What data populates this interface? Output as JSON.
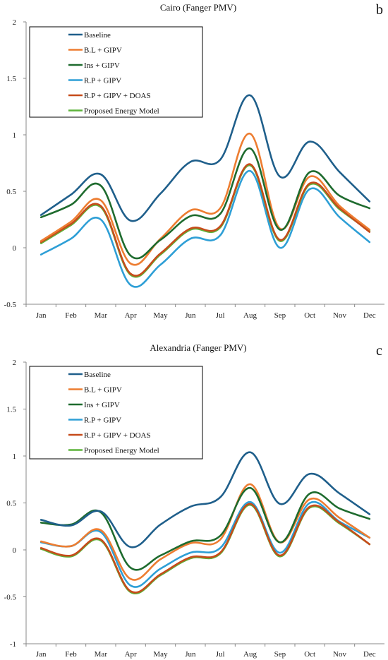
{
  "chart_data": [
    {
      "type": "line",
      "title": "Cairo (Fanger PMV)",
      "panel_label": "b",
      "categories": [
        "Jan",
        "Feb",
        "Mar",
        "Apr",
        "May",
        "Jun",
        "Jul",
        "Aug",
        "Sep",
        "Oct",
        "Nov",
        "Dec"
      ],
      "ylim": [
        -0.5,
        2
      ],
      "yticks": [
        "-0.5",
        "0",
        "0.5",
        "1",
        "1.5",
        "2"
      ],
      "legend_position": "top-left",
      "grid": false,
      "series": [
        {
          "name": "Baseline",
          "color": "#1f5f8b",
          "values": [
            0.29,
            0.47,
            0.65,
            0.24,
            0.48,
            0.76,
            0.78,
            1.35,
            0.63,
            0.94,
            0.67,
            0.41
          ]
        },
        {
          "name": "B.L + GIPV",
          "color": "#ed7d31",
          "values": [
            0.06,
            0.23,
            0.42,
            -0.14,
            0.08,
            0.33,
            0.35,
            1.01,
            0.17,
            0.63,
            0.37,
            0.16
          ]
        },
        {
          "name": "Ins + GIPV",
          "color": "#1e6b2e",
          "values": [
            0.27,
            0.38,
            0.55,
            -0.07,
            0.07,
            0.28,
            0.3,
            0.88,
            0.16,
            0.67,
            0.46,
            0.35
          ]
        },
        {
          "name": "R.P + GIPV",
          "color": "#2e9fd6",
          "values": [
            -0.06,
            0.08,
            0.25,
            -0.33,
            -0.15,
            0.08,
            0.11,
            0.68,
            0.0,
            0.52,
            0.27,
            0.05
          ]
        },
        {
          "name": "R.P + GIPV + DOAS",
          "color": "#c64b1a",
          "values": [
            0.05,
            0.21,
            0.37,
            -0.23,
            -0.05,
            0.17,
            0.19,
            0.74,
            0.07,
            0.57,
            0.35,
            0.14
          ]
        },
        {
          "name": "Proposed Energy Model",
          "color": "#5db33a",
          "values": [
            0.04,
            0.2,
            0.36,
            -0.24,
            -0.06,
            0.16,
            0.18,
            0.73,
            0.06,
            0.56,
            0.34,
            0.15
          ]
        }
      ]
    },
    {
      "type": "line",
      "title": "Alexandria  (Fanger PMV)",
      "panel_label": "c",
      "categories": [
        "Jan",
        "Feb",
        "Mar",
        "Apr",
        "May",
        "Jun",
        "Jul",
        "Aug",
        "Sep",
        "Oct",
        "Nov",
        "Dec"
      ],
      "ylim": [
        -1,
        2
      ],
      "yticks": [
        "-1",
        "-0.5",
        "0",
        "0.5",
        "1",
        "1.5",
        "2"
      ],
      "legend_position": "top-left",
      "grid": false,
      "series": [
        {
          "name": "Baseline",
          "color": "#1f5f8b",
          "values": [
            0.32,
            0.26,
            0.41,
            0.03,
            0.27,
            0.46,
            0.56,
            1.04,
            0.49,
            0.81,
            0.6,
            0.38
          ]
        },
        {
          "name": "B.L + GIPV",
          "color": "#ed7d31",
          "values": [
            0.09,
            0.04,
            0.21,
            -0.31,
            -0.1,
            0.07,
            0.11,
            0.7,
            0.08,
            0.54,
            0.34,
            0.13
          ]
        },
        {
          "name": "Ins + GIPV",
          "color": "#1e6b2e",
          "values": [
            0.29,
            0.27,
            0.4,
            -0.19,
            -0.06,
            0.09,
            0.15,
            0.66,
            0.08,
            0.6,
            0.44,
            0.33
          ]
        },
        {
          "name": "R.P + GIPV",
          "color": "#2e9fd6",
          "values": [
            0.08,
            0.04,
            0.19,
            -0.38,
            -0.2,
            -0.03,
            0.02,
            0.51,
            -0.03,
            0.5,
            0.3,
            0.13
          ]
        },
        {
          "name": "R.P + GIPV + DOAS",
          "color": "#c64b1a",
          "values": [
            0.02,
            -0.06,
            0.11,
            -0.44,
            -0.26,
            -0.08,
            -0.03,
            0.49,
            -0.06,
            0.46,
            0.29,
            0.06
          ]
        },
        {
          "name": "Proposed Energy Model",
          "color": "#5db33a",
          "values": [
            0.01,
            -0.07,
            0.1,
            -0.45,
            -0.27,
            -0.09,
            -0.04,
            0.48,
            -0.07,
            0.45,
            0.28,
            0.06
          ]
        }
      ]
    }
  ]
}
